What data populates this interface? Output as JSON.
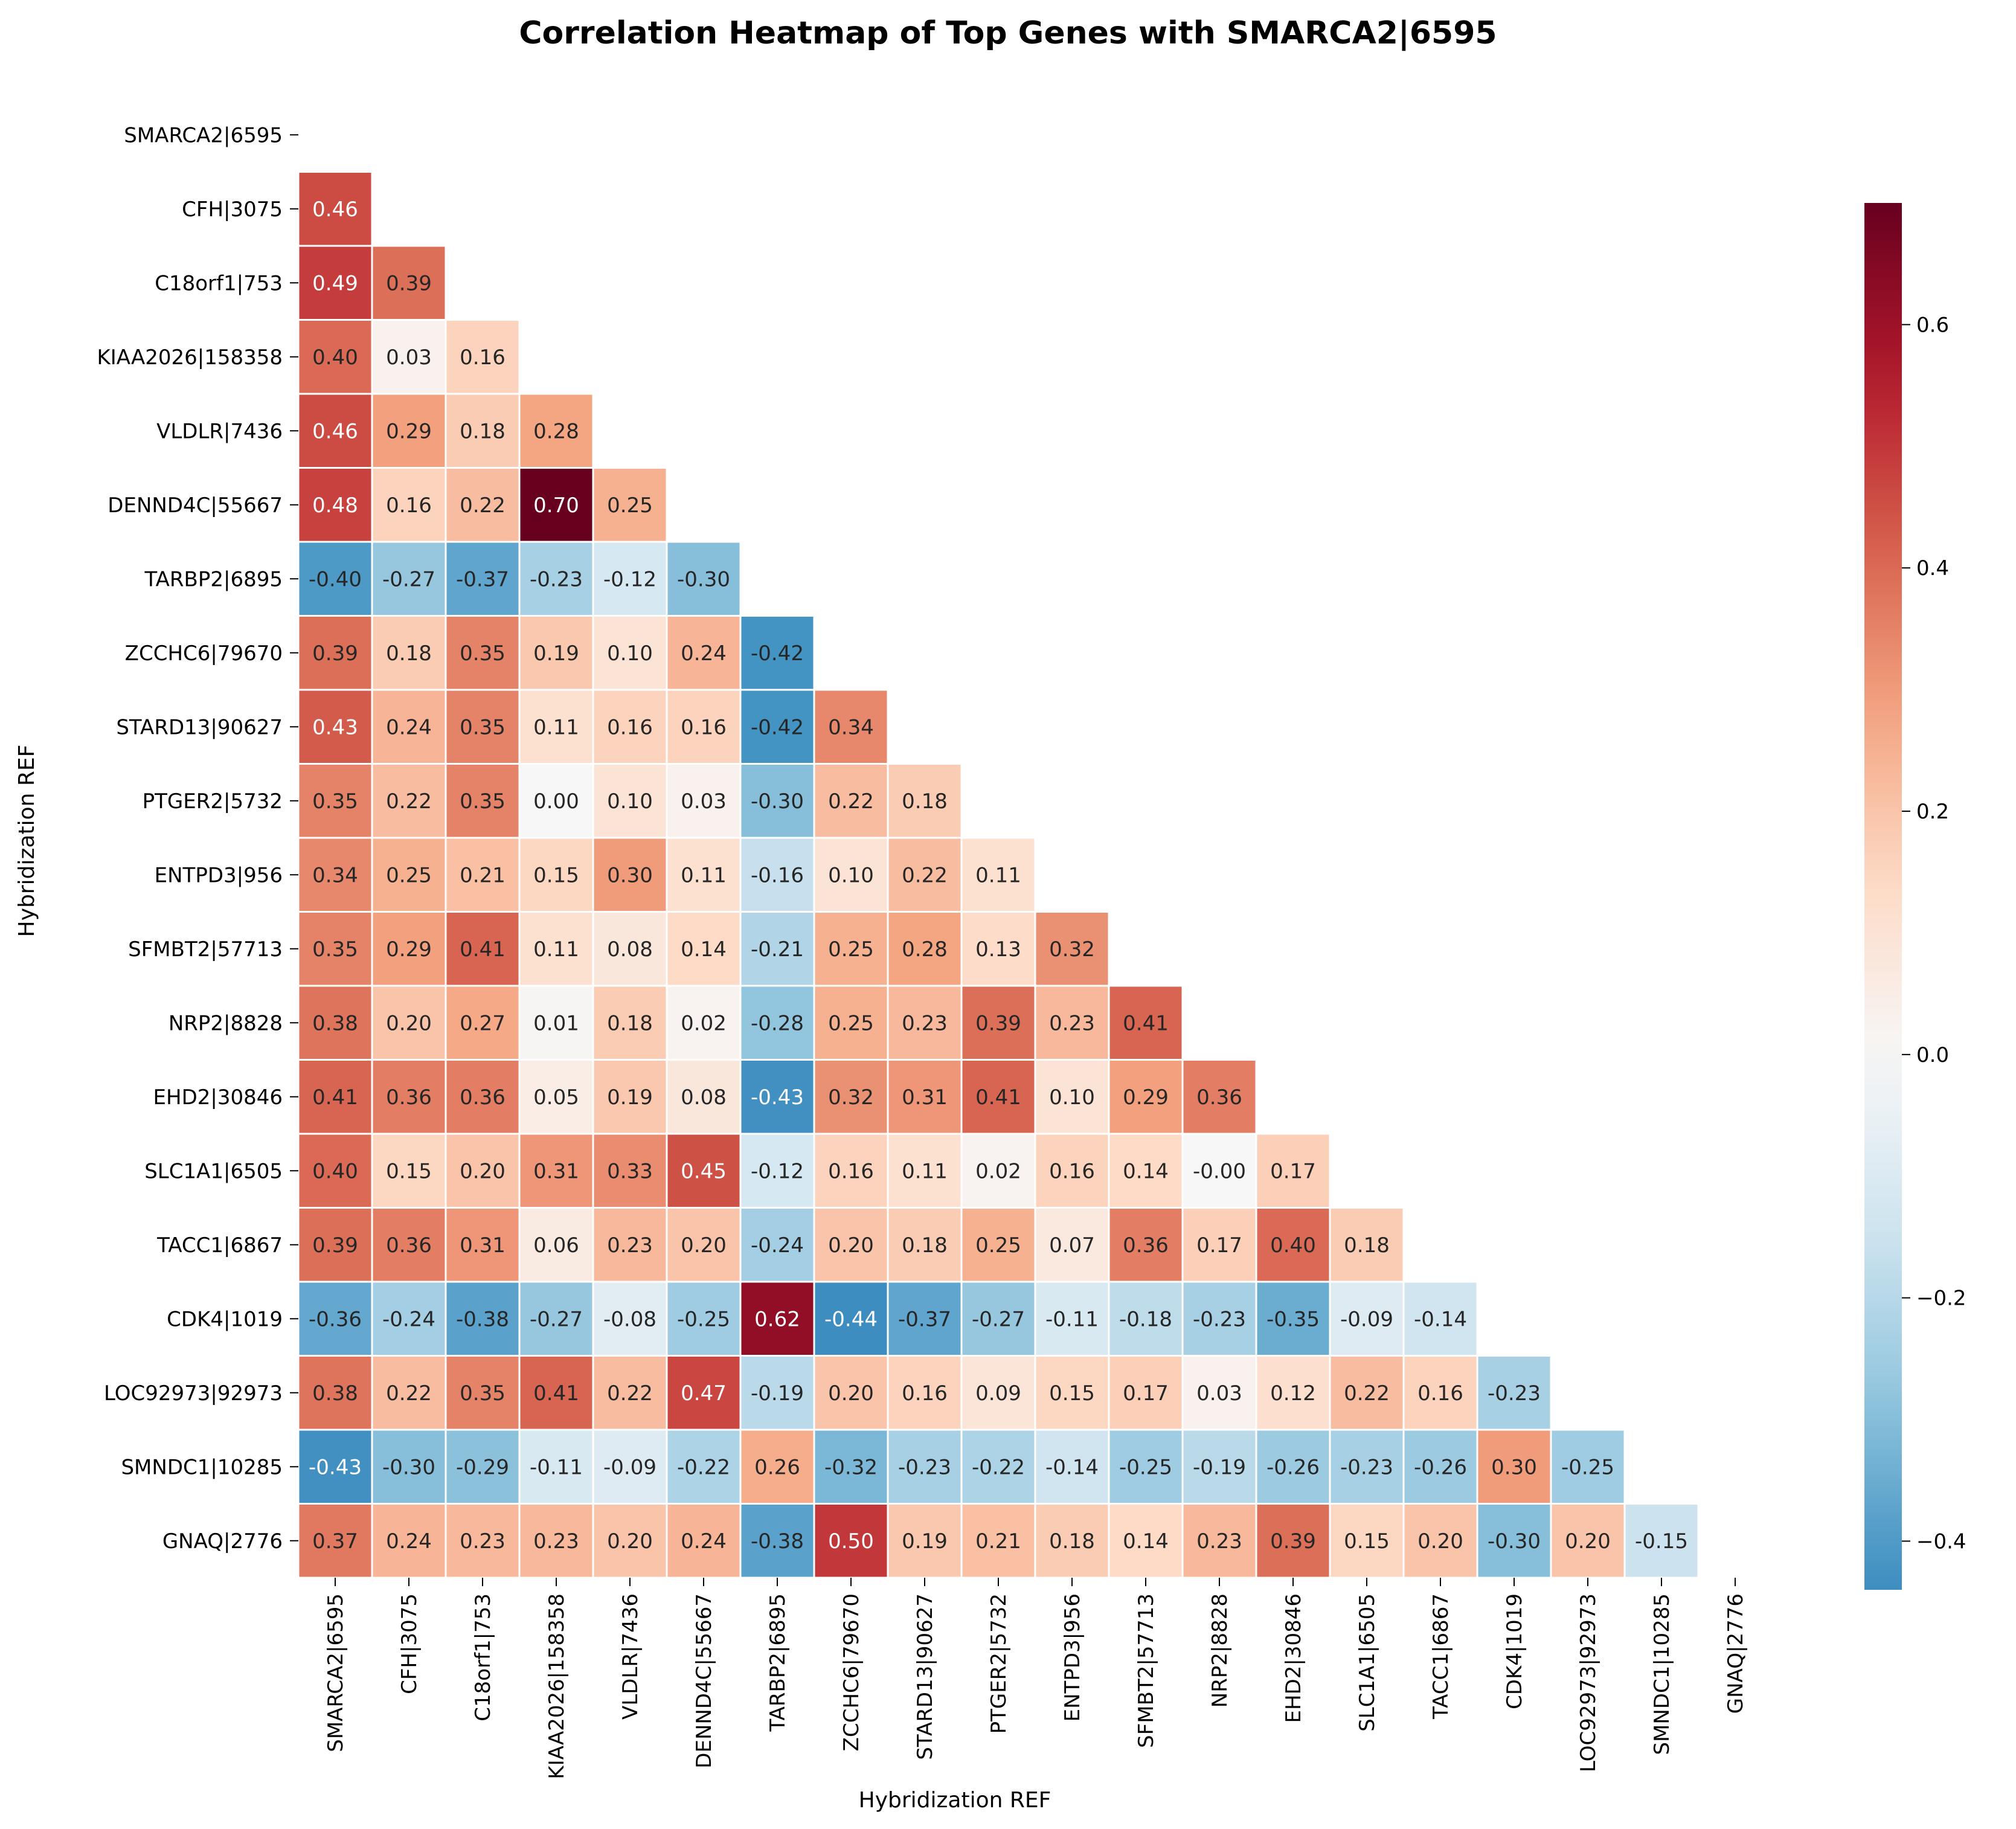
{
  "chart_data": {
    "type": "heatmap",
    "title": "Correlation Heatmap of Top Genes with SMARCA2|6595",
    "xlabel": "Hybridization REF",
    "ylabel": "Hybridization REF",
    "mask": "upper-triangle-including-diagonal",
    "labels": [
      "SMARCA2|6595",
      "CFH|3075",
      "C18orf1|753",
      "KIAA2026|158358",
      "VLDLR|7436",
      "DENND4C|55667",
      "TARBP2|6895",
      "ZCCHC6|79670",
      "STARD13|90627",
      "PTGER2|5732",
      "ENTPD3|956",
      "SFMBT2|57713",
      "NRP2|8828",
      "EHD2|30846",
      "SLC1A1|6505",
      "TACC1|6867",
      "CDK4|1019",
      "LOC92973|92973",
      "SMNDC1|10285",
      "GNAQ|2776"
    ],
    "values": [
      [],
      [
        "0.46"
      ],
      [
        "0.49",
        "0.39"
      ],
      [
        "0.40",
        "0.03",
        "0.16"
      ],
      [
        "0.46",
        "0.29",
        "0.18",
        "0.28"
      ],
      [
        "0.48",
        "0.16",
        "0.22",
        "0.70",
        "0.25"
      ],
      [
        "-0.40",
        "-0.27",
        "-0.37",
        "-0.23",
        "-0.12",
        "-0.30"
      ],
      [
        "0.39",
        "0.18",
        "0.35",
        "0.19",
        "0.10",
        "0.24",
        "-0.42"
      ],
      [
        "0.43",
        "0.24",
        "0.35",
        "0.11",
        "0.16",
        "0.16",
        "-0.42",
        "0.34"
      ],
      [
        "0.35",
        "0.22",
        "0.35",
        "0.00",
        "0.10",
        "0.03",
        "-0.30",
        "0.22",
        "0.18"
      ],
      [
        "0.34",
        "0.25",
        "0.21",
        "0.15",
        "0.30",
        "0.11",
        "-0.16",
        "0.10",
        "0.22",
        "0.11"
      ],
      [
        "0.35",
        "0.29",
        "0.41",
        "0.11",
        "0.08",
        "0.14",
        "-0.21",
        "0.25",
        "0.28",
        "0.13",
        "0.32"
      ],
      [
        "0.38",
        "0.20",
        "0.27",
        "0.01",
        "0.18",
        "0.02",
        "-0.28",
        "0.25",
        "0.23",
        "0.39",
        "0.23",
        "0.41"
      ],
      [
        "0.41",
        "0.36",
        "0.36",
        "0.05",
        "0.19",
        "0.08",
        "-0.43",
        "0.32",
        "0.31",
        "0.41",
        "0.10",
        "0.29",
        "0.36"
      ],
      [
        "0.40",
        "0.15",
        "0.20",
        "0.31",
        "0.33",
        "0.45",
        "-0.12",
        "0.16",
        "0.11",
        "0.02",
        "0.16",
        "0.14",
        "-0.00",
        "0.17"
      ],
      [
        "0.39",
        "0.36",
        "0.31",
        "0.06",
        "0.23",
        "0.20",
        "-0.24",
        "0.20",
        "0.18",
        "0.25",
        "0.07",
        "0.36",
        "0.17",
        "0.40",
        "0.18"
      ],
      [
        "-0.36",
        "-0.24",
        "-0.38",
        "-0.27",
        "-0.08",
        "-0.25",
        "0.62",
        "-0.44",
        "-0.37",
        "-0.27",
        "-0.11",
        "-0.18",
        "-0.23",
        "-0.35",
        "-0.09",
        "-0.14"
      ],
      [
        "0.38",
        "0.22",
        "0.35",
        "0.41",
        "0.22",
        "0.47",
        "-0.19",
        "0.20",
        "0.16",
        "0.09",
        "0.15",
        "0.17",
        "0.03",
        "0.12",
        "0.22",
        "0.16",
        "-0.23"
      ],
      [
        "-0.43",
        "-0.30",
        "-0.29",
        "-0.11",
        "-0.09",
        "-0.22",
        "0.26",
        "-0.32",
        "-0.23",
        "-0.22",
        "-0.14",
        "-0.25",
        "-0.19",
        "-0.26",
        "-0.23",
        "-0.26",
        "0.30",
        "-0.25"
      ],
      [
        "0.37",
        "0.24",
        "0.23",
        "0.23",
        "0.20",
        "0.24",
        "-0.38",
        "0.50",
        "0.19",
        "0.21",
        "0.18",
        "0.14",
        "0.23",
        "0.39",
        "0.15",
        "0.20",
        "-0.30",
        "0.20",
        "-0.15"
      ]
    ],
    "colorbar": {
      "colormap": "RdBu_r",
      "vmin": -0.44,
      "vmax": 0.7,
      "ticks": [
        "-0.4",
        "-0.2",
        "0.0",
        "0.2",
        "0.4",
        "0.6"
      ]
    }
  }
}
